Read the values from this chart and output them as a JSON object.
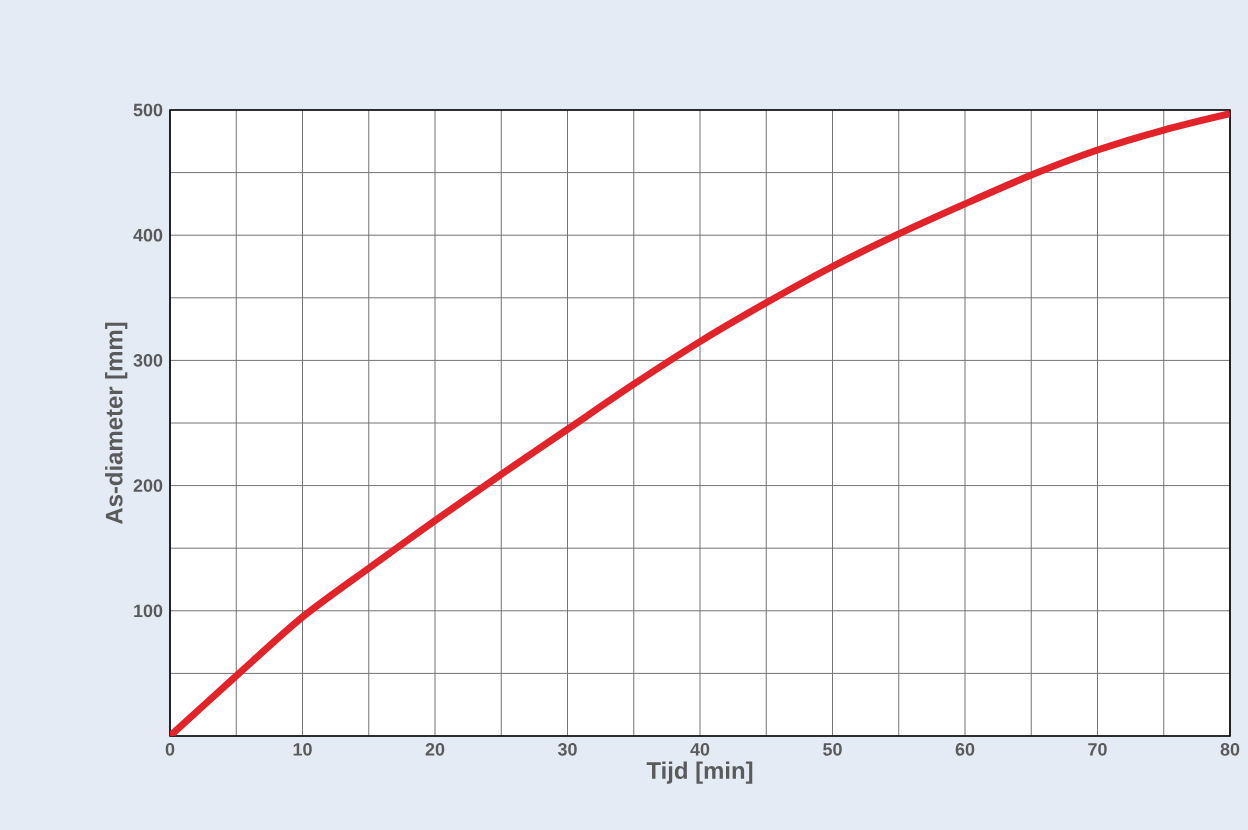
{
  "chart_data": {
    "type": "line",
    "xlabel": "Tijd [min]",
    "ylabel": "As-diameter [mm]",
    "x": [
      0,
      5,
      10,
      15,
      20,
      25,
      30,
      35,
      40,
      45,
      50,
      55,
      60,
      65,
      70,
      75,
      80
    ],
    "series": [
      {
        "color": "#e2232a",
        "values": [
          0,
          48,
          95,
          134,
          172,
          209,
          245,
          281,
          315,
          346,
          375,
          401,
          425,
          448,
          468,
          484,
          497
        ]
      }
    ],
    "xlim": [
      0,
      80
    ],
    "ylim": [
      0,
      500
    ],
    "xticks": [
      0,
      {
        "value": 5,
        "label": null
      },
      10,
      {
        "value": 15,
        "label": null
      },
      20,
      {
        "value": 25,
        "label": null
      },
      30,
      {
        "value": 35,
        "label": null
      },
      40,
      {
        "value": 45,
        "label": null
      },
      50,
      {
        "value": 55,
        "label": null
      },
      60,
      {
        "value": 65,
        "label": null
      },
      70,
      {
        "value": 75,
        "label": null
      },
      80
    ],
    "yticks": [
      {
        "value": 0,
        "label": null
      },
      {
        "value": 50,
        "label": null
      },
      100,
      {
        "value": 150,
        "label": null
      },
      200,
      {
        "value": 250,
        "label": null
      },
      300,
      {
        "value": 350,
        "label": null
      },
      400,
      {
        "value": 450,
        "label": null
      },
      500
    ],
    "grid": true,
    "marker": "none",
    "line_style": "solid"
  }
}
